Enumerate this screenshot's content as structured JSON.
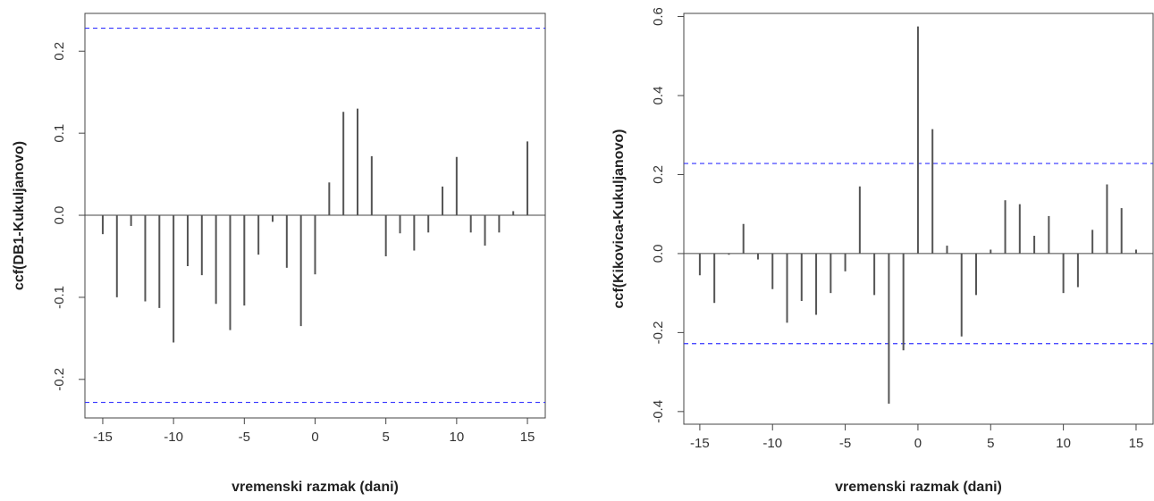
{
  "chart_data": [
    {
      "type": "stem",
      "xlabel": "vremenski razmak (dani)",
      "ylabel": "ccf(DB1-Kukuljanovo)",
      "x": [
        -15,
        -14,
        -13,
        -12,
        -11,
        -10,
        -9,
        -8,
        -7,
        -6,
        -5,
        -4,
        -3,
        -2,
        -1,
        0,
        1,
        2,
        3,
        4,
        5,
        6,
        7,
        8,
        9,
        10,
        11,
        12,
        13,
        14,
        15
      ],
      "values": [
        -0.023,
        -0.1,
        -0.013,
        -0.105,
        -0.113,
        -0.155,
        -0.062,
        -0.073,
        -0.108,
        -0.14,
        -0.11,
        -0.048,
        -0.008,
        -0.064,
        -0.135,
        -0.072,
        0.04,
        0.126,
        0.13,
        0.072,
        -0.05,
        -0.022,
        -0.043,
        -0.021,
        0.035,
        0.071,
        -0.021,
        -0.037,
        -0.021,
        0.005,
        0.09
      ],
      "color": "#555555",
      "ci_lines": [
        0.228,
        -0.228
      ],
      "ci_color": "#3333ff",
      "xlim": [
        -16.26,
        16.26
      ],
      "ylim": [
        -0.247,
        0.246
      ],
      "xticks": [
        -15,
        -10,
        -5,
        0,
        5,
        10,
        15
      ],
      "yticks": [
        -0.2,
        -0.1,
        {
          "value": 0,
          "label": "0.0"
        },
        0.1,
        0.2
      ]
    },
    {
      "type": "stem",
      "xlabel": "vremenski razmak (dani)",
      "ylabel": "ccf(Kikovica-Kukuljanovo)",
      "x": [
        -15,
        -14,
        -13,
        -12,
        -11,
        -10,
        -9,
        -8,
        -7,
        -6,
        -5,
        -4,
        -3,
        -2,
        -1,
        0,
        1,
        2,
        3,
        4,
        5,
        6,
        7,
        8,
        9,
        10,
        11,
        12,
        13,
        14,
        15
      ],
      "values": [
        -0.055,
        -0.125,
        -0.003,
        0.075,
        -0.015,
        -0.09,
        -0.175,
        -0.12,
        -0.155,
        -0.1,
        -0.045,
        0.17,
        -0.105,
        -0.38,
        -0.245,
        0.575,
        0.315,
        0.02,
        -0.21,
        -0.105,
        0.01,
        0.135,
        0.125,
        0.045,
        0.095,
        -0.1,
        -0.085,
        0.06,
        0.175,
        0.115,
        0.01
      ],
      "color": "#555555",
      "ci_lines": [
        0.228,
        -0.228
      ],
      "ci_color": "#3333ff",
      "xlim": [
        -16.1,
        16.17
      ],
      "ylim": [
        -0.432,
        0.608
      ],
      "xticks": [
        -15,
        -10,
        -5,
        0,
        5,
        10,
        15
      ],
      "yticks": [
        -0.4,
        -0.2,
        {
          "value": 0,
          "label": "0.0"
        },
        0.2,
        0.4,
        0.6
      ]
    }
  ]
}
